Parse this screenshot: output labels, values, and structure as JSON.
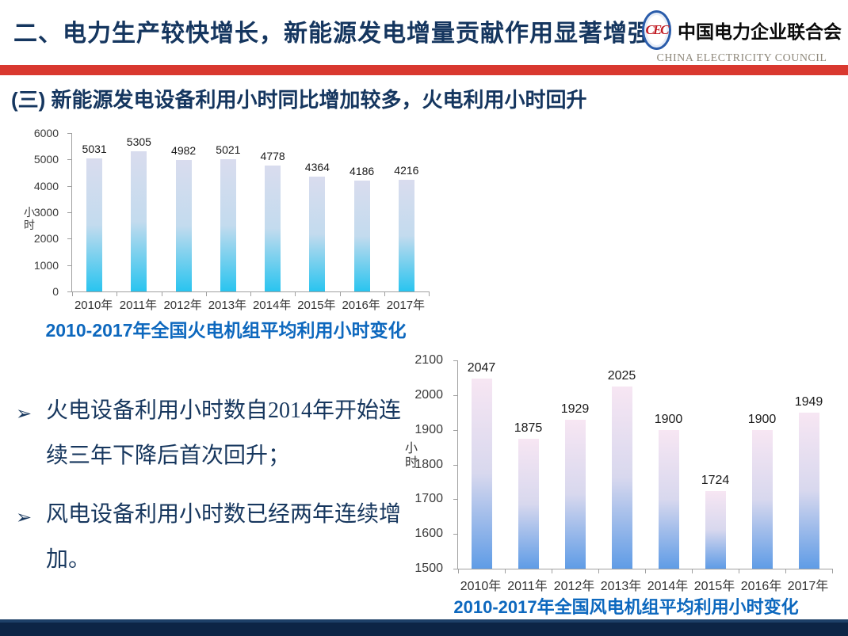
{
  "header": {
    "title": "二、电力生产较快增长，新能源发电增量贡献作用显著增强",
    "logo": {
      "emblem": "CEC",
      "cn": "中国电力企业联合会",
      "en": "CHINA ELECTRICITY COUNCIL"
    }
  },
  "subtitle": "(三)  新能源发电设备利用小时同比增加较多，火电利用小时回升",
  "bullet_marker": "➢",
  "bullets": [
    "火电设备利用小时数自2014年开始连续三年下降后首次回升；",
    "风电设备利用小时数已经两年连续增加。"
  ],
  "colors": {
    "title_navy": "#15365F",
    "subtitle_navy": "#15365F",
    "bullet_navy": "#17375E",
    "red_band": "#D9382F",
    "footer_navy": "#0D2546",
    "chart_title_blue": "#0D68BE"
  },
  "chart_data": [
    {
      "type": "bar",
      "title": "2010-2017年全国火电机组平均利用小时变化",
      "ylabel": "小时",
      "xlabel": "",
      "categories": [
        "2010年",
        "2011年",
        "2012年",
        "2013年",
        "2014年",
        "2015年",
        "2016年",
        "2017年"
      ],
      "values": [
        5031,
        5305,
        4982,
        5021,
        4778,
        4364,
        4186,
        4216
      ],
      "ylim": [
        0,
        6000
      ],
      "ytick_step": 1000,
      "grid": false,
      "legend": "none",
      "bar_gradient": [
        "#D9DCEE",
        "#C3DBEE",
        "#29C4EF"
      ]
    },
    {
      "type": "bar",
      "title": "2010-2017年全国风电机组平均利用小时变化",
      "ylabel": "小时",
      "xlabel": "",
      "categories": [
        "2010年",
        "2011年",
        "2012年",
        "2013年",
        "2014年",
        "2015年",
        "2016年",
        "2017年"
      ],
      "values": [
        2047,
        1875,
        1929,
        2025,
        1900,
        1724,
        1900,
        1949
      ],
      "ylim": [
        1500,
        2100
      ],
      "ytick_step": 100,
      "grid": false,
      "legend": "none",
      "bar_gradient": [
        "#F7E6F3",
        "#D8D8EE",
        "#5F9CE6"
      ]
    }
  ]
}
